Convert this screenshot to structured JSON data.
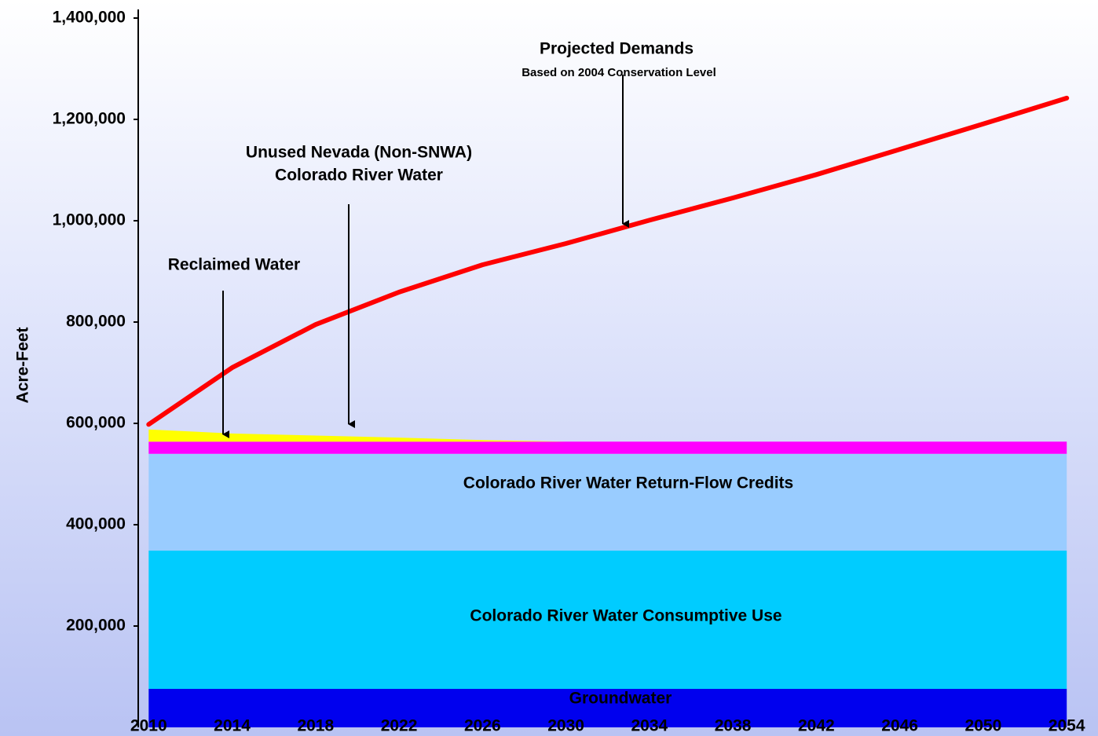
{
  "chart_data": {
    "type": "area",
    "stacked": true,
    "y_label": "Acre-Feet",
    "x": [
      2010,
      2014,
      2018,
      2022,
      2026,
      2030,
      2034,
      2038,
      2042,
      2046,
      2050,
      2054
    ],
    "xlim": [
      2009.5,
      2055.5
    ],
    "xticks": [
      2010,
      2014,
      2018,
      2022,
      2026,
      2030,
      2034,
      2038,
      2042,
      2046,
      2050,
      2054
    ],
    "ylim": [
      0,
      1400000
    ],
    "yticks": [
      {
        "value": 200000,
        "label": "200,000"
      },
      {
        "value": 400000,
        "label": "400,000"
      },
      {
        "value": 600000,
        "label": "600,000"
      },
      {
        "value": 800000,
        "label": "800,000"
      },
      {
        "value": 1000000,
        "label": "1,000,000"
      },
      {
        "value": 1200000,
        "label": "1,200,000"
      },
      {
        "value": 1400000,
        "label": "1,400,000"
      }
    ],
    "series": [
      {
        "name": "Groundwater",
        "type": "area",
        "color": "#0000ee",
        "values": [
          76000,
          76000,
          76000,
          76000,
          76000,
          76000,
          76000,
          76000,
          76000,
          76000,
          76000,
          76000
        ]
      },
      {
        "name": "Colorado River Water Consumptive Use",
        "type": "area",
        "color": "#00ccff",
        "values": [
          273000,
          273000,
          273000,
          273000,
          273000,
          273000,
          273000,
          273000,
          273000,
          273000,
          273000,
          273000
        ]
      },
      {
        "name": "Colorado River Water Return-Flow Credits",
        "type": "area",
        "color": "#99ccff",
        "values": [
          191000,
          191000,
          191000,
          191000,
          191000,
          191000,
          191000,
          191000,
          191000,
          191000,
          191000,
          191000
        ]
      },
      {
        "name": "Reclaimed Water",
        "type": "area",
        "color": "#ff00ff",
        "values": [
          24000,
          24000,
          24000,
          24000,
          24000,
          24000,
          24000,
          24000,
          24000,
          24000,
          24000,
          24000
        ]
      },
      {
        "name": [
          "Unused Nevada (Non-SNWA)",
          "Colorado River Water"
        ],
        "type": "area",
        "color": "#ffff00",
        "values": [
          24000,
          16000,
          12000,
          8000,
          3000,
          0,
          0,
          0,
          0,
          0,
          0,
          0
        ]
      },
      {
        "name": "Projected Demands",
        "note": "Based on 2004 Conservation Level",
        "type": "line",
        "color": "#ff0000",
        "values": [
          598000,
          710000,
          795000,
          859000,
          913000,
          955000,
          1001000,
          1045000,
          1091000,
          1141000,
          1191000,
          1242000
        ]
      }
    ]
  }
}
